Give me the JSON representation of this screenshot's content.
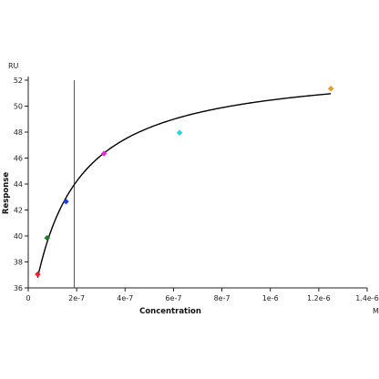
{
  "chart_data": {
    "type": "scatter",
    "title": "",
    "xlabel": "Concentration",
    "ylabel": "Response",
    "x_unit": "M",
    "y_unit": "RU",
    "xlim": [
      0,
      1.4e-06
    ],
    "ylim": [
      36,
      52
    ],
    "x_ticks": [
      {
        "value": 0,
        "label": "0"
      },
      {
        "value": 2e-07,
        "label": "2e-7"
      },
      {
        "value": 4e-07,
        "label": "4e-7"
      },
      {
        "value": 6e-07,
        "label": "6e-7"
      },
      {
        "value": 8e-07,
        "label": "8e-7"
      },
      {
        "value": 1e-06,
        "label": "1e-6"
      },
      {
        "value": 1.2e-06,
        "label": "1.2e-6"
      },
      {
        "value": 1.4e-06,
        "label": "1.4e-6"
      }
    ],
    "y_ticks": [
      {
        "value": 36,
        "label": "36"
      },
      {
        "value": 38,
        "label": "38"
      },
      {
        "value": 40,
        "label": "40"
      },
      {
        "value": 42,
        "label": "42"
      },
      {
        "value": 44,
        "label": "44"
      },
      {
        "value": 46,
        "label": "46"
      },
      {
        "value": 48,
        "label": "48"
      },
      {
        "value": 50,
        "label": "50"
      },
      {
        "value": 52,
        "label": "52"
      }
    ],
    "points": [
      {
        "x": 3.9e-08,
        "y": 37.05,
        "color": "#e8212d"
      },
      {
        "x": 7.8e-08,
        "y": 39.85,
        "color": "#1f7a2e"
      },
      {
        "x": 1.56e-07,
        "y": 42.65,
        "color": "#1a3fd9"
      },
      {
        "x": 3.13e-07,
        "y": 46.35,
        "color": "#e62ad8"
      },
      {
        "x": 6.25e-07,
        "y": 47.95,
        "color": "#25d4d4"
      },
      {
        "x": 1.25e-06,
        "y": 51.35,
        "color": "#e0a020"
      }
    ],
    "fit_curve": {
      "color": "#000000",
      "x_start": 3.9e-08,
      "x_end": 1.25e-06,
      "model": "hyperbolic",
      "offset": 32.7,
      "rmax": 20.55,
      "kd": 1.57e-07
    },
    "reference_line": {
      "x": 1.9e-07,
      "color": "#555555"
    },
    "grid": false,
    "legend": "none"
  }
}
